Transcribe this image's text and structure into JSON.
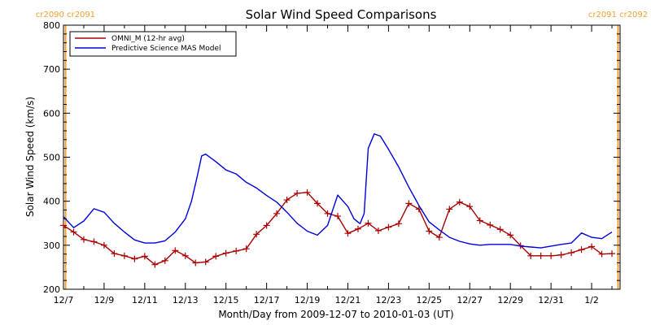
{
  "chart_data": {
    "type": "line",
    "title": "Solar Wind Speed Comparisons",
    "xlabel": "Month/Day from 2009-12-07 to 2010-01-03 (UT)",
    "ylabel": "Solar Wind Speed (km/s)",
    "xlim": [
      0,
      27.4
    ],
    "ylim": [
      200,
      800
    ],
    "yticks": [
      200,
      300,
      400,
      500,
      600,
      700,
      800
    ],
    "xticks": [
      {
        "x": 0,
        "label": "12/7"
      },
      {
        "x": 2,
        "label": "12/9"
      },
      {
        "x": 4,
        "label": "12/11"
      },
      {
        "x": 6,
        "label": "12/13"
      },
      {
        "x": 8,
        "label": "12/15"
      },
      {
        "x": 10,
        "label": "12/17"
      },
      {
        "x": 12,
        "label": "12/19"
      },
      {
        "x": 14,
        "label": "12/21"
      },
      {
        "x": 16,
        "label": "12/23"
      },
      {
        "x": 18,
        "label": "12/25"
      },
      {
        "x": 20,
        "label": "12/27"
      },
      {
        "x": 22,
        "label": "12/29"
      },
      {
        "x": 24,
        "label": "12/31"
      },
      {
        "x": 26,
        "label": "1/2"
      }
    ],
    "rotation_markers": [
      {
        "x": 0.1,
        "label": "cr2090 cr2091",
        "color": "#f0a030"
      },
      {
        "x": 27.3,
        "label": "cr2091 cr2092",
        "color": "#f0a030"
      }
    ],
    "legend_position": "top-left",
    "series": [
      {
        "name": "OMNI_M (12-hr avg)",
        "color": "#aa0000",
        "marker": "plus",
        "x": [
          0,
          0.5,
          1,
          1.5,
          2,
          2.5,
          3,
          3.5,
          4,
          4.5,
          5,
          5.5,
          6,
          6.5,
          7,
          7.5,
          8,
          8.5,
          9,
          9.5,
          10,
          10.5,
          11,
          11.5,
          12,
          12.5,
          13,
          13.5,
          14,
          14.5,
          15,
          15.5,
          16,
          16.5,
          17,
          17.5,
          18,
          18.5,
          19,
          19.5,
          20,
          20.5,
          21,
          21.5,
          22,
          22.5,
          23,
          23.5,
          24,
          24.5,
          25,
          25.5,
          26,
          26.5,
          27
        ],
        "y": [
          345,
          330,
          313,
          308,
          300,
          281,
          276,
          269,
          275,
          256,
          265,
          288,
          276,
          260,
          262,
          275,
          282,
          287,
          292,
          325,
          345,
          372,
          403,
          418,
          420,
          395,
          372,
          366,
          327,
          337,
          350,
          333,
          341,
          349,
          395,
          382,
          332,
          318,
          382,
          398,
          388,
          356,
          346,
          336,
          323,
          299,
          276,
          276,
          276,
          278,
          283,
          290,
          297,
          280,
          281
        ]
      },
      {
        "name": "Predictive Science MAS Model",
        "color": "#0000dd",
        "marker": "none",
        "x": [
          0,
          0.5,
          1,
          1.5,
          2,
          2.5,
          3,
          3.5,
          4,
          4.5,
          5,
          5.5,
          6,
          6.3,
          6.6,
          6.8,
          7,
          7.5,
          8,
          8.5,
          9,
          9.5,
          10,
          10.5,
          11,
          11.5,
          12,
          12.5,
          13,
          13.5,
          14,
          14.3,
          14.6,
          14.8,
          15,
          15.3,
          15.6,
          16,
          16.5,
          17,
          17.5,
          18,
          18.5,
          19,
          19.5,
          20,
          20.5,
          21,
          21.5,
          22,
          22.5,
          23,
          23.5,
          24,
          24.5,
          25,
          25.5,
          26,
          26.5,
          27
        ],
        "y": [
          365,
          340,
          355,
          383,
          375,
          350,
          330,
          312,
          305,
          305,
          310,
          330,
          360,
          400,
          460,
          503,
          507,
          490,
          471,
          462,
          443,
          430,
          413,
          398,
          375,
          350,
          332,
          323,
          345,
          414,
          388,
          360,
          349,
          372,
          520,
          553,
          548,
          518,
          478,
          432,
          390,
          353,
          335,
          318,
          309,
          303,
          300,
          302,
          302,
          302,
          298,
          296,
          294,
          298,
          302,
          305,
          328,
          318,
          315,
          330
        ]
      }
    ]
  }
}
